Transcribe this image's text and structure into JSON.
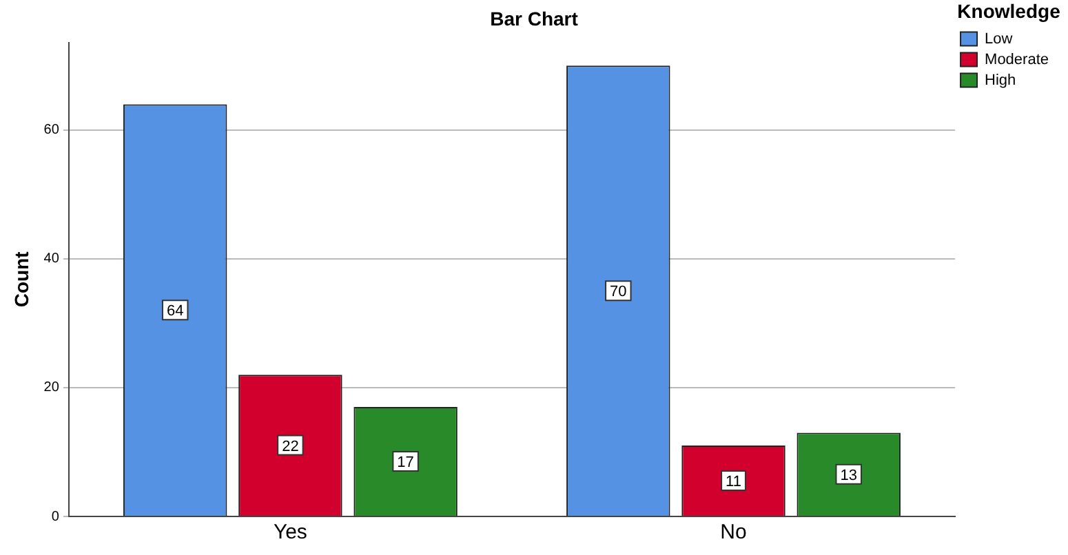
{
  "chart_data": {
    "type": "bar",
    "title": "Bar Chart",
    "ylabel": "Count",
    "legend_title": "Knowledge",
    "categories": [
      "Yes",
      "No"
    ],
    "series": [
      {
        "name": "Low",
        "color": "#5592e3",
        "values": [
          64,
          70
        ]
      },
      {
        "name": "Moderate",
        "color": "#d2002c",
        "values": [
          22,
          11
        ]
      },
      {
        "name": "High",
        "color": "#288a28",
        "values": [
          17,
          13
        ]
      }
    ],
    "ylim": [
      0,
      73.6
    ],
    "yticks": [
      0,
      20,
      40,
      60
    ],
    "grid": "y",
    "legend": "top right",
    "data_labels": true
  }
}
